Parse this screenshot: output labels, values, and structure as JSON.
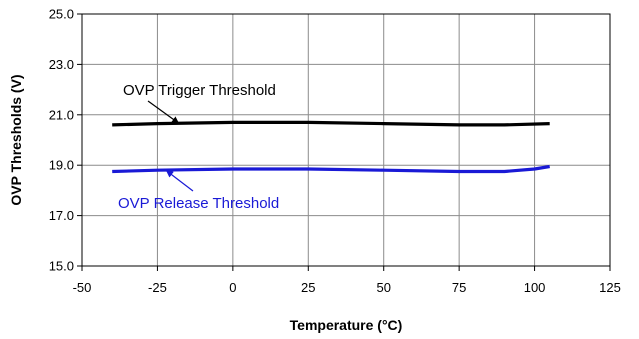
{
  "chart_data": {
    "type": "line",
    "xlabel": "Temperature (°C)",
    "ylabel": "OVP Thresholds (V)",
    "xlim": [
      -50,
      125
    ],
    "ylim": [
      15.0,
      25.0
    ],
    "x_ticks": [
      "-50",
      "-25",
      "0",
      "25",
      "50",
      "75",
      "100",
      "125"
    ],
    "y_ticks": [
      "15.0",
      "17.0",
      "19.0",
      "21.0",
      "23.0",
      "25.0"
    ],
    "grid": true,
    "series": [
      {
        "name": "OVP Trigger Threshold",
        "color": "#000000",
        "x": [
          -40,
          -25,
          0,
          25,
          50,
          75,
          90,
          105
        ],
        "y": [
          20.6,
          20.65,
          20.7,
          20.7,
          20.65,
          20.6,
          20.6,
          20.65
        ]
      },
      {
        "name": "OVP Release Threshold",
        "color": "#1a1ad6",
        "x": [
          -40,
          -25,
          0,
          25,
          50,
          75,
          90,
          100,
          105
        ],
        "y": [
          18.75,
          18.8,
          18.85,
          18.85,
          18.8,
          18.75,
          18.75,
          18.85,
          18.95
        ]
      }
    ],
    "annotations": [
      {
        "text": "OVP Trigger Threshold",
        "color": "#000000",
        "arrow_to": [
          -18,
          20.67
        ]
      },
      {
        "text": "OVP Release Threshold",
        "color": "#1a1ad6",
        "arrow_to": [
          -22,
          18.78
        ]
      }
    ]
  }
}
